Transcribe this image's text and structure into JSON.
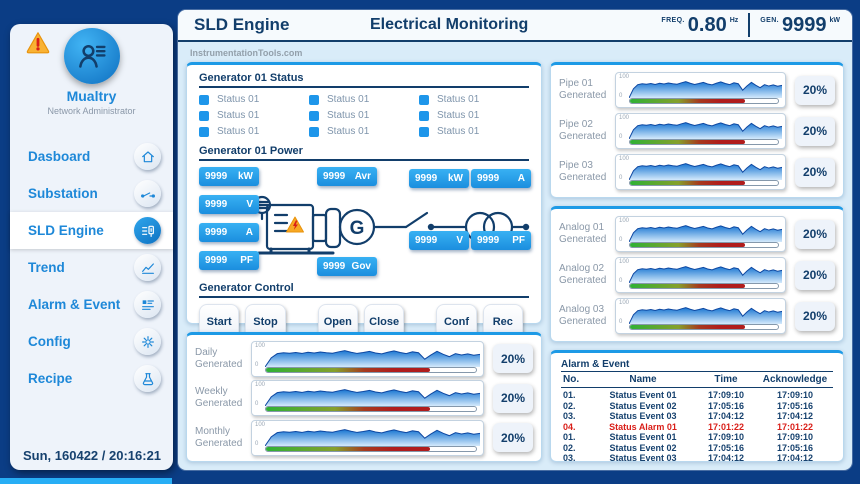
{
  "header": {
    "page_title": "SLD Engine",
    "screen_title": "Electrical Monitoring",
    "meters": [
      {
        "label": "FREQ.",
        "value": "0.80",
        "unit": "Hz"
      },
      {
        "label": "GEN.",
        "value": "9999",
        "unit": "kW"
      }
    ]
  },
  "watermark": "InstrumentationTools.com",
  "sidebar": {
    "user": {
      "name": "Mualtry",
      "role": "Network Administrator"
    },
    "items": [
      {
        "id": "dashboard",
        "label": "Dasboard",
        "icon": "home-icon",
        "active": false
      },
      {
        "id": "substation",
        "label": "Substation",
        "icon": "switch-icon",
        "active": false
      },
      {
        "id": "sld-engine",
        "label": "SLD Engine",
        "icon": "sld-icon",
        "active": true
      },
      {
        "id": "trend",
        "label": "Trend",
        "icon": "trend-icon",
        "active": false
      },
      {
        "id": "alarm-event",
        "label": "Alarm & Event",
        "icon": "alarm-list-icon",
        "active": false
      },
      {
        "id": "config",
        "label": "Config",
        "icon": "gear-icon",
        "active": false
      },
      {
        "id": "recipe",
        "label": "Recipe",
        "icon": "flask-icon",
        "active": false
      }
    ],
    "datetime": "Sun, 160422 / 20:16:21"
  },
  "generator": {
    "status": {
      "title": "Generator 01 Status",
      "items": [
        "Status 01",
        "Status 01",
        "Status 01",
        "Status 01",
        "Status 01",
        "Status 01",
        "Status 01",
        "Status 01",
        "Status 01"
      ]
    },
    "power": {
      "title": "Generator 01 Power",
      "generator_symbol": "G",
      "badges": {
        "left": [
          {
            "value": "9999",
            "unit": "kW"
          },
          {
            "value": "9999",
            "unit": "V"
          },
          {
            "value": "9999",
            "unit": "A"
          },
          {
            "value": "9999",
            "unit": "PF"
          }
        ],
        "middle": [
          {
            "value": "9999",
            "unit": "Avr"
          },
          {
            "value": "9999",
            "unit": "Gov"
          }
        ],
        "right": [
          {
            "value": "9999",
            "unit": "kW"
          },
          {
            "value": "9999",
            "unit": "A"
          },
          {
            "value": "9999",
            "unit": "V"
          },
          {
            "value": "9999",
            "unit": "PF"
          }
        ]
      }
    },
    "control": {
      "title": "Generator Control",
      "groups": [
        [
          "Start",
          "Stop"
        ],
        [
          "Open",
          "Close"
        ],
        [
          "Conf",
          "Rec"
        ]
      ]
    }
  },
  "chart_data": {
    "type": "area",
    "ylim": [
      0,
      100
    ],
    "y_tick_labels": [
      "100",
      "0"
    ],
    "bar_fill_percent": 78,
    "spark_points": [
      0,
      40,
      58,
      62,
      60,
      63,
      59,
      64,
      61,
      65,
      62,
      60,
      66,
      71,
      64,
      59,
      63,
      68,
      61,
      57,
      64,
      70,
      63,
      58,
      66,
      62,
      34,
      52,
      68,
      55,
      45,
      58,
      52,
      57,
      51,
      55
    ],
    "groups": [
      {
        "id": "daily",
        "rows": [
          {
            "label": "Daily Generated",
            "percent": "20%"
          },
          {
            "label": "Weekly Generated",
            "percent": "20%"
          },
          {
            "label": "Monthly Generated",
            "percent": "20%"
          }
        ]
      },
      {
        "id": "pipe",
        "rows": [
          {
            "label": "Pipe 01 Generated",
            "percent": "20%"
          },
          {
            "label": "Pipe 02 Generated",
            "percent": "20%"
          },
          {
            "label": "Pipe 03 Generated",
            "percent": "20%"
          }
        ]
      },
      {
        "id": "analog",
        "rows": [
          {
            "label": "Analog 01 Generated",
            "percent": "20%"
          },
          {
            "label": "Analog 02 Generated",
            "percent": "20%"
          },
          {
            "label": "Analog 03 Generated",
            "percent": "20%"
          }
        ]
      }
    ]
  },
  "alarm_table": {
    "title": "Alarm & Event",
    "columns": [
      "No.",
      "Name",
      "Time",
      "Acknowledge"
    ],
    "rows": [
      {
        "no": "01.",
        "name": "Status Event 01",
        "time": "17:09:10",
        "ack": "17:09:10",
        "alarm": false
      },
      {
        "no": "02.",
        "name": "Status Event 02",
        "time": "17:05:16",
        "ack": "17:05:16",
        "alarm": false
      },
      {
        "no": "03.",
        "name": "Status Event 03",
        "time": "17:04:12",
        "ack": "17:04:12",
        "alarm": false
      },
      {
        "no": "04.",
        "name": "Status Alarm 01",
        "time": "17:01:22",
        "ack": "17:01:22",
        "alarm": true
      },
      {
        "no": "01.",
        "name": "Status Event 01",
        "time": "17:09:10",
        "ack": "17:09:10",
        "alarm": false
      },
      {
        "no": "02.",
        "name": "Status Event 02",
        "time": "17:05:16",
        "ack": "17:05:16",
        "alarm": false
      },
      {
        "no": "03.",
        "name": "Status Event 03",
        "time": "17:04:12",
        "ack": "17:04:12",
        "alarm": false
      }
    ]
  },
  "colors": {
    "background_navy": "#0b3d85",
    "text_navy": "#123e6b",
    "accent_blue": "#1d9ae6",
    "menu_blue": "#1e88d8",
    "badge_blue": "#2aa4ec",
    "alarm_red": "#d91e18",
    "bar_green": "#2eb135",
    "bar_red": "#b01c1c",
    "bottom_accent": "#27aef5"
  }
}
